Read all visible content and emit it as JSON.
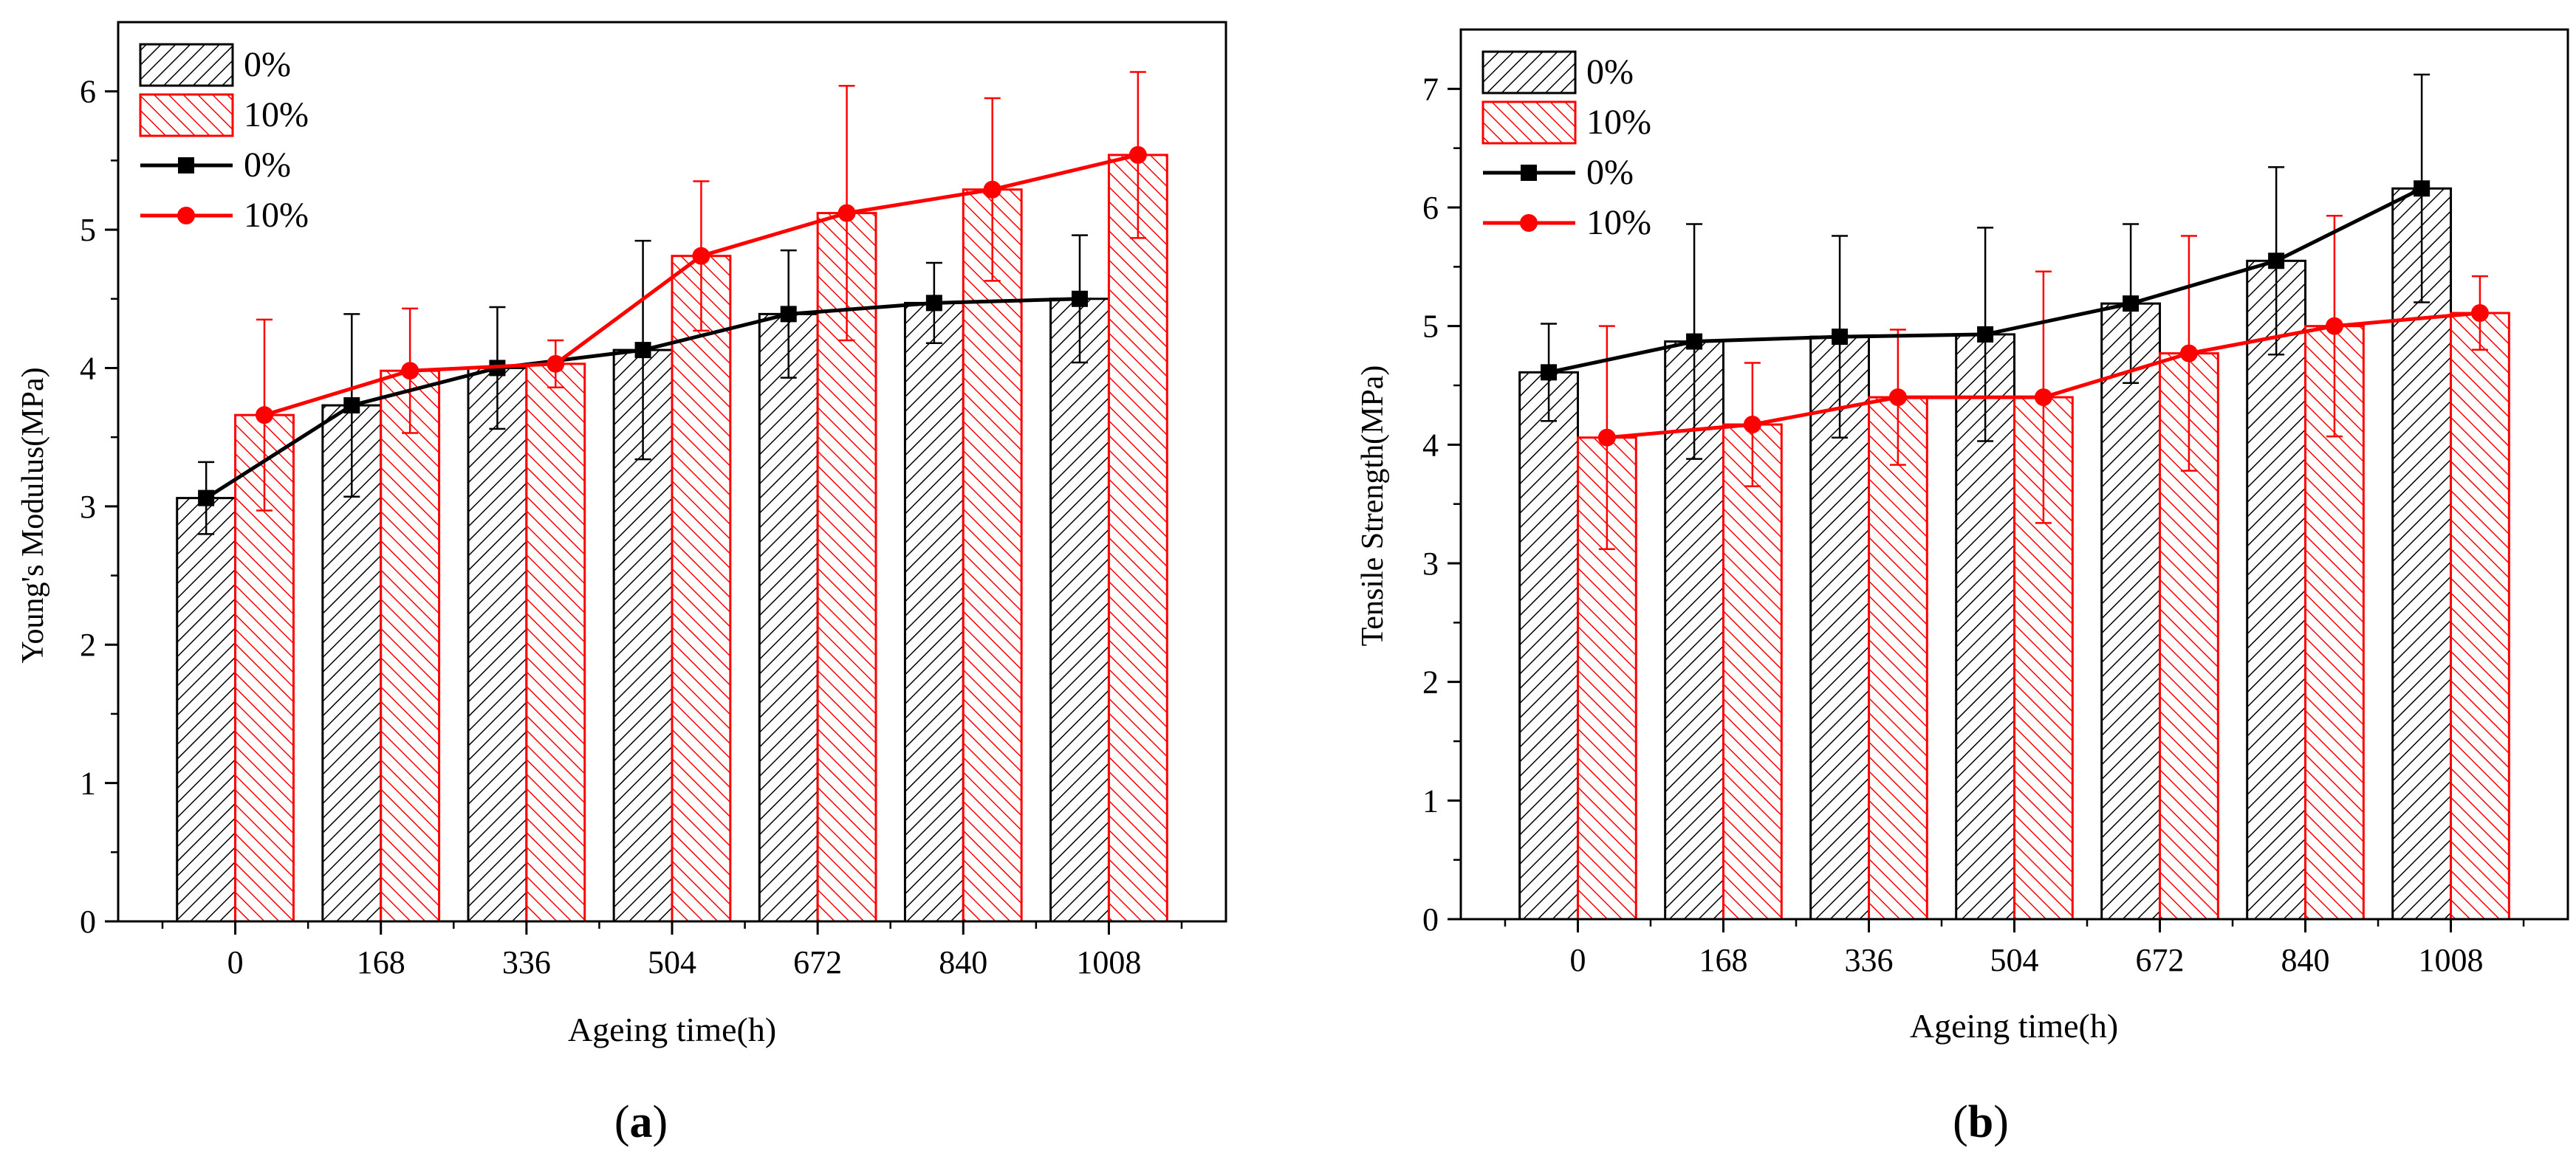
{
  "chart_data": [
    {
      "id": "a",
      "type": "bar",
      "panel_label": "a",
      "xlabel": "Ageing time(h)",
      "ylabel": "Young's Modulus(MPa)",
      "ylim": [
        0,
        6.5
      ],
      "yticks": [
        0,
        1,
        2,
        3,
        4,
        5,
        6
      ],
      "categories": [
        "0",
        "168",
        "336",
        "504",
        "672",
        "840",
        "1008"
      ],
      "series": [
        {
          "name": "0%",
          "kind": "bar",
          "color": "#000000",
          "values": [
            3.06,
            3.73,
            4.0,
            4.13,
            4.39,
            4.47,
            4.5
          ],
          "errors": [
            0.26,
            0.66,
            0.44,
            0.79,
            0.46,
            0.29,
            0.46
          ]
        },
        {
          "name": "10%",
          "kind": "bar",
          "color": "#ff0000",
          "values": [
            3.66,
            3.98,
            4.03,
            4.81,
            5.12,
            5.29,
            5.54
          ],
          "errors": [
            0.69,
            0.45,
            0.17,
            0.54,
            0.92,
            0.66,
            0.6
          ]
        },
        {
          "name": "0%",
          "kind": "line",
          "color": "#000000",
          "marker": "square",
          "values": [
            3.06,
            3.73,
            4.0,
            4.13,
            4.39,
            4.47,
            4.5
          ]
        },
        {
          "name": "10%",
          "kind": "line",
          "color": "#ff0000",
          "marker": "circle",
          "values": [
            3.66,
            3.98,
            4.03,
            4.81,
            5.12,
            5.29,
            5.54
          ]
        }
      ],
      "legend": "top-left"
    },
    {
      "id": "b",
      "type": "bar",
      "panel_label": "b",
      "xlabel": "Ageing time(h)",
      "ylabel": "Tensile Strength(MPa)",
      "ylim": [
        0,
        7.5
      ],
      "yticks": [
        0,
        1,
        2,
        3,
        4,
        5,
        6,
        7
      ],
      "categories": [
        "0",
        "168",
        "336",
        "504",
        "672",
        "840",
        "1008"
      ],
      "series": [
        {
          "name": "0%",
          "kind": "bar",
          "color": "#000000",
          "values": [
            4.61,
            4.87,
            4.91,
            4.93,
            5.19,
            5.55,
            6.16
          ],
          "errors": [
            0.41,
            0.99,
            0.85,
            0.9,
            0.67,
            0.79,
            0.96
          ]
        },
        {
          "name": "10%",
          "kind": "bar",
          "color": "#ff0000",
          "values": [
            4.06,
            4.17,
            4.4,
            4.4,
            4.77,
            5.0,
            5.11
          ],
          "errors": [
            0.94,
            0.52,
            0.57,
            1.06,
            0.99,
            0.93,
            0.31
          ]
        },
        {
          "name": "0%",
          "kind": "line",
          "color": "#000000",
          "marker": "square",
          "values": [
            4.61,
            4.87,
            4.91,
            4.93,
            5.19,
            5.55,
            6.16
          ]
        },
        {
          "name": "10%",
          "kind": "line",
          "color": "#ff0000",
          "marker": "circle",
          "values": [
            4.06,
            4.17,
            4.4,
            4.4,
            4.77,
            5.0,
            5.11
          ]
        }
      ],
      "legend": "top-left"
    }
  ]
}
